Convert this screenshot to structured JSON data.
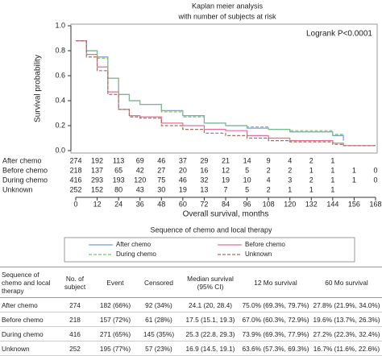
{
  "chart_data": {
    "type": "line",
    "step": true,
    "title": "Kaplan meier analysis",
    "subtitle": "with number of subjects at risk",
    "annotation": "Logrank P<0.0001",
    "xlabel": "Overall survival, months",
    "ylabel": "Survival probability",
    "legend_title": "Sequence of chemo and local therapy",
    "x": [
      0,
      6,
      12,
      18,
      24,
      30,
      36,
      48,
      60,
      72,
      84,
      96,
      108,
      120,
      144,
      150,
      168
    ],
    "series": [
      {
        "name": "After chemo",
        "color": "#7b9be0",
        "dash": false,
        "values": [
          0.88,
          0.8,
          0.75,
          0.58,
          0.45,
          0.4,
          0.37,
          0.32,
          0.28,
          0.22,
          0.2,
          0.18,
          0.17,
          0.15,
          0.12,
          0.08,
          null
        ]
      },
      {
        "name": "Before chemo",
        "color": "#e0709a",
        "dash": false,
        "values": [
          0.88,
          0.77,
          0.67,
          0.47,
          0.33,
          0.28,
          0.27,
          0.22,
          0.2,
          0.17,
          0.16,
          0.12,
          0.1,
          0.08,
          0.06,
          0.04,
          0.04
        ]
      },
      {
        "name": "During chemo",
        "color": "#7cc46a",
        "dash": true,
        "values": [
          0.88,
          0.8,
          0.74,
          0.58,
          0.45,
          0.4,
          0.37,
          0.31,
          0.27,
          0.22,
          0.2,
          0.19,
          0.17,
          0.16,
          0.13,
          0.13,
          null
        ]
      },
      {
        "name": "Unknown",
        "color": "#a07060",
        "dash": true,
        "values": [
          0.88,
          0.75,
          0.64,
          0.45,
          0.33,
          0.27,
          0.26,
          0.2,
          0.17,
          0.14,
          0.12,
          0.1,
          0.08,
          0.07,
          0.05,
          0.04,
          0.04
        ]
      }
    ],
    "xlim": [
      0,
      168
    ],
    "xticks": [
      0,
      12,
      24,
      36,
      48,
      60,
      72,
      84,
      96,
      108,
      120,
      132,
      144,
      156,
      168
    ],
    "ylim": [
      0,
      1
    ],
    "yticks": [
      {
        "value": 0,
        "label": "0.0"
      },
      0.2,
      0.4,
      0.6,
      0.8,
      {
        "value": 1,
        "label": "1.0"
      }
    ],
    "at_risk": [
      {
        "name": "After chemo",
        "values": [
          274,
          192,
          113,
          69,
          46,
          37,
          29,
          21,
          14,
          9,
          4,
          2,
          1,
          null,
          null
        ]
      },
      {
        "name": "Before chemo",
        "values": [
          218,
          137,
          65,
          42,
          27,
          20,
          16,
          12,
          5,
          2,
          2,
          1,
          1,
          1,
          0
        ]
      },
      {
        "name": "During chemo",
        "values": [
          416,
          293,
          193,
          120,
          75,
          46,
          32,
          19,
          10,
          4,
          3,
          2,
          1,
          1,
          0
        ]
      },
      {
        "name": "Unknown",
        "values": [
          252,
          152,
          80,
          43,
          30,
          19,
          13,
          7,
          5,
          2,
          1,
          1,
          1,
          null,
          null
        ]
      }
    ]
  },
  "table": {
    "header": [
      "Sequence of chemo and local therapy",
      "No. of subject",
      "Event",
      "Censored",
      "Median survival (95% CI)",
      "12 Mo survival",
      "60 Mo survival"
    ],
    "rows": [
      [
        "After chemo",
        "274",
        "182 (66%)",
        "92 (34%)",
        "24.1 (20, 28.4)",
        "75.0% (69.3%, 79.7%)",
        "27.8% (21.9%, 34.0%)"
      ],
      [
        "Before chemo",
        "218",
        "157 (72%)",
        "61 (28%)",
        "17.5 (15.1, 19.3)",
        "67.0% (60.3%, 72.9%)",
        "19.6% (13.7%, 26.3%)"
      ],
      [
        "During chemo",
        "416",
        "271 (65%)",
        "145 (35%)",
        "25.3 (22.8, 29.3)",
        "73.9% (69.3%, 77.9%)",
        "27.2% (22.3%, 32.4%)"
      ],
      [
        "Unknown",
        "252",
        "195 (77%)",
        "57 (23%)",
        "16.9 (14.5, 19.1)",
        "63.6% (57.3%, 69.3%)",
        "16.7% (11.6%, 22.6%)"
      ]
    ]
  }
}
